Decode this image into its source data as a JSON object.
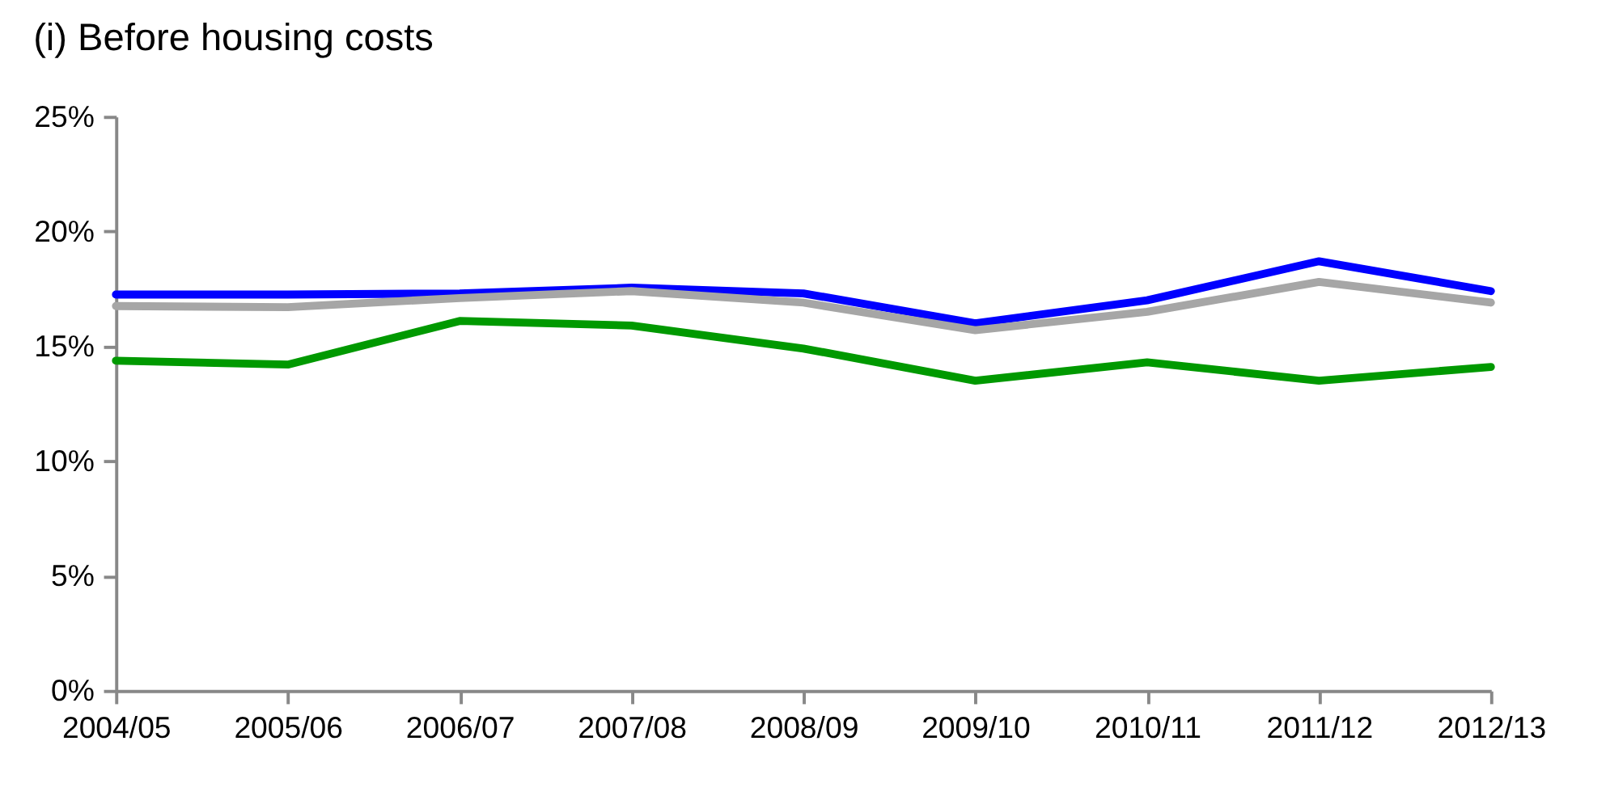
{
  "chart_data": {
    "type": "line",
    "title": "(i) Before housing costs",
    "categories": [
      "2004/05",
      "2005/06",
      "2006/07",
      "2007/08",
      "2008/09",
      "2009/10",
      "2010/11",
      "2011/12",
      "2012/13"
    ],
    "series": [
      {
        "color": "#0000ff",
        "values": [
          17.25,
          17.25,
          17.3,
          17.55,
          17.3,
          16.0,
          17.0,
          18.7,
          17.4
        ]
      },
      {
        "color": "#a6a6a6",
        "values": [
          16.75,
          16.7,
          17.1,
          17.4,
          16.9,
          15.7,
          16.5,
          17.8,
          16.9
        ]
      },
      {
        "color": "#009900",
        "values": [
          14.37,
          14.2,
          16.1,
          15.9,
          14.9,
          13.5,
          14.3,
          13.5,
          14.1
        ]
      }
    ],
    "ylim": [
      0,
      25
    ],
    "yticks": [
      {
        "value": 0,
        "label": "0%"
      },
      {
        "value": 5,
        "label": "5%"
      },
      {
        "value": 10,
        "label": "10%"
      },
      {
        "value": 15,
        "label": "15%"
      },
      {
        "value": 20,
        "label": "20%"
      },
      {
        "value": 25,
        "label": "25%"
      }
    ],
    "grid": false,
    "legend": false,
    "marker": "none",
    "line_style": "solid"
  }
}
